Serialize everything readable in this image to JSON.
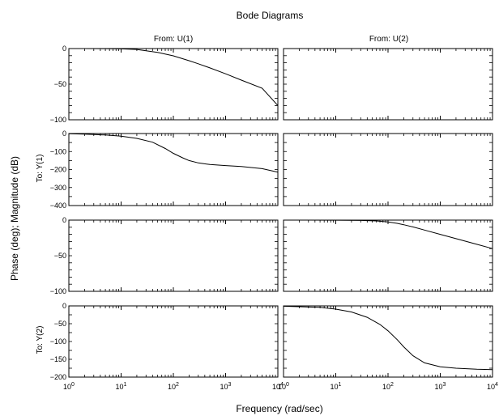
{
  "title": "Bode Diagrams",
  "xlabel": "Frequency (rad/sec)",
  "ylabel": "Phase (deg); Magnitude (dB)",
  "column_titles": [
    "From: U(1)",
    "From: U(2)"
  ],
  "row_titles": [
    "To: Y(1)",
    "To: Y(2)"
  ],
  "chart_data": {
    "type": "line",
    "x_scale": "log",
    "xlim": [
      1,
      10000
    ],
    "x_ticks": [
      {
        "value": 1,
        "base": "10",
        "exp": "0"
      },
      {
        "value": 10,
        "base": "10",
        "exp": "1"
      },
      {
        "value": 100,
        "base": "10",
        "exp": "2"
      },
      {
        "value": 1000,
        "base": "10",
        "exp": "3"
      },
      {
        "value": 10000,
        "base": "10",
        "exp": "4"
      }
    ],
    "panels": [
      {
        "row": 0,
        "col": 0,
        "quantity": "magnitude",
        "ylim": [
          -100,
          0
        ],
        "y_ticks": [
          {
            "value": 0,
            "label": "0"
          },
          {
            "value": -50,
            "label": "−50"
          },
          {
            "value": -100,
            "label": "−100"
          }
        ],
        "x": [
          1,
          2,
          5,
          10,
          20,
          50,
          100,
          200,
          300,
          500,
          1000,
          2000,
          5000,
          10000
        ],
        "y": [
          0,
          0,
          -0.1,
          -0.4,
          -1.3,
          -5.5,
          -10.2,
          -17,
          -21.4,
          -27.2,
          -35.5,
          -44.3,
          -55.7,
          -80
        ]
      },
      {
        "row": 0,
        "col": 1,
        "quantity": "magnitude",
        "ylim": [
          -100,
          0
        ],
        "y_ticks": [],
        "x": [],
        "y": []
      },
      {
        "row": 1,
        "col": 0,
        "quantity": "phase",
        "ylim": [
          -400,
          0
        ],
        "y_ticks": [
          {
            "value": 0,
            "label": "0"
          },
          {
            "value": -100,
            "label": "−100"
          },
          {
            "value": -200,
            "label": "−200"
          },
          {
            "value": -300,
            "label": "−300"
          },
          {
            "value": -400,
            "label": "−400"
          }
        ],
        "x": [
          1,
          2,
          5,
          10,
          20,
          40,
          70,
          100,
          150,
          200,
          300,
          500,
          1000,
          2000,
          5000,
          10000
        ],
        "y": [
          -1,
          -3,
          -8,
          -15,
          -27,
          -48,
          -83,
          -110,
          -135,
          -150,
          -163,
          -172,
          -178,
          -183,
          -195,
          -215
        ]
      },
      {
        "row": 1,
        "col": 1,
        "quantity": "phase",
        "ylim": [
          -400,
          0
        ],
        "y_ticks": [],
        "x": [],
        "y": []
      },
      {
        "row": 2,
        "col": 0,
        "quantity": "magnitude",
        "ylim": [
          -100,
          0
        ],
        "y_ticks": [
          {
            "value": 0,
            "label": "0"
          },
          {
            "value": -50,
            "label": "−50"
          },
          {
            "value": -100,
            "label": "−100"
          }
        ],
        "x": [],
        "y": []
      },
      {
        "row": 2,
        "col": 1,
        "quantity": "magnitude",
        "ylim": [
          -100,
          0
        ],
        "y_ticks": [],
        "x": [
          1,
          10,
          30,
          60,
          100,
          150,
          200,
          300,
          500,
          1000,
          2000,
          5000,
          10000
        ],
        "y": [
          0,
          -0.1,
          -0.4,
          -1.1,
          -2.6,
          -4.5,
          -6.5,
          -9.5,
          -14,
          -20,
          -26,
          -34,
          -40
        ]
      },
      {
        "row": 3,
        "col": 0,
        "quantity": "phase",
        "ylim": [
          -200,
          0
        ],
        "y_ticks": [
          {
            "value": 0,
            "label": "0"
          },
          {
            "value": -50,
            "label": "−50"
          },
          {
            "value": -100,
            "label": "−100"
          },
          {
            "value": -150,
            "label": "−150"
          },
          {
            "value": -200,
            "label": "−200"
          }
        ],
        "x": [],
        "y": []
      },
      {
        "row": 3,
        "col": 1,
        "quantity": "phase",
        "ylim": [
          -200,
          0
        ],
        "y_ticks": [],
        "x": [
          1,
          5,
          10,
          20,
          40,
          70,
          100,
          150,
          200,
          300,
          500,
          1000,
          2000,
          5000,
          10000
        ],
        "y": [
          -1,
          -4,
          -9,
          -17,
          -32,
          -52,
          -70,
          -95,
          -115,
          -140,
          -160,
          -171,
          -175,
          -178,
          -179
        ]
      }
    ]
  }
}
